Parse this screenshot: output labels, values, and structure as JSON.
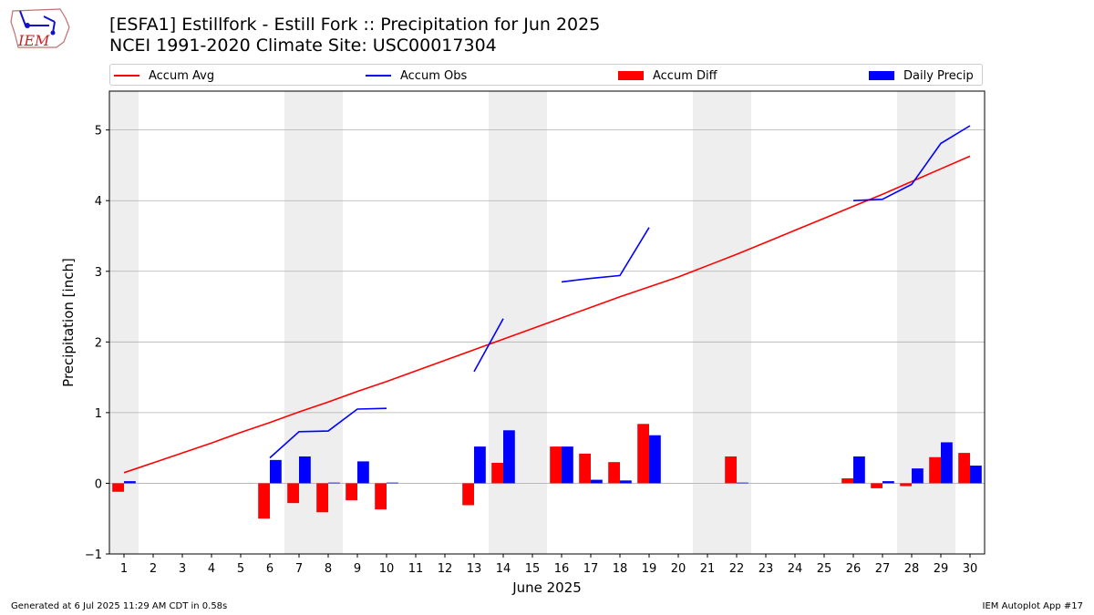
{
  "header": {
    "logo_text": "IEM",
    "title_line1": "[ESFA1] Estillfork - Estill Fork :: Precipitation for Jun 2025",
    "title_line2": "NCEI 1991-2020 Climate Site: USC00017304"
  },
  "footer": {
    "generated": "Generated at 6 Jul 2025 11:29 AM CDT in 0.58s",
    "app": "IEM Autoplot App #17"
  },
  "colors": {
    "avg": "#ff0000",
    "obs": "#0000ff",
    "diff": "#ff0000",
    "daily": "#0000ff",
    "weekend": "#eeeeee",
    "grid": "#b0b0b0"
  },
  "chart_data": {
    "type": "bar",
    "xlabel": "June 2025",
    "ylabel": "Precipitation [inch]",
    "xlim": [
      0.5,
      30.5
    ],
    "ylim": [
      -1,
      5.55
    ],
    "yticks": [
      -1,
      0,
      1,
      2,
      3,
      4,
      5
    ],
    "categories": [
      "1",
      "2",
      "3",
      "4",
      "5",
      "6",
      "7",
      "8",
      "9",
      "10",
      "11",
      "12",
      "13",
      "14",
      "15",
      "16",
      "17",
      "18",
      "19",
      "20",
      "21",
      "22",
      "23",
      "24",
      "25",
      "26",
      "27",
      "28",
      "29",
      "30"
    ],
    "legend": [
      "Accum Avg",
      "Accum Obs",
      "Accum Diff",
      "Daily Precip"
    ],
    "weekend_days": [
      [
        1,
        1
      ],
      [
        7,
        8
      ],
      [
        14,
        15
      ],
      [
        21,
        22
      ],
      [
        28,
        29
      ]
    ],
    "accum_avg": [
      0.15,
      0.29,
      0.43,
      0.57,
      0.72,
      0.86,
      1.01,
      1.15,
      1.3,
      1.44,
      1.59,
      1.74,
      1.89,
      2.04,
      2.19,
      2.34,
      2.49,
      2.64,
      2.78,
      2.92,
      3.08,
      3.24,
      3.41,
      3.58,
      3.75,
      3.92,
      4.09,
      4.27,
      4.45,
      4.63
    ],
    "accum_obs_segments": [
      [
        [
          6,
          0.36
        ],
        [
          7,
          0.73
        ],
        [
          8,
          0.74
        ],
        [
          9,
          1.05
        ],
        [
          10,
          1.06
        ]
      ],
      [
        [
          13,
          1.58
        ],
        [
          14,
          2.33
        ]
      ],
      [
        [
          16,
          2.85
        ],
        [
          17,
          2.9
        ],
        [
          18,
          2.94
        ],
        [
          19,
          3.62
        ]
      ],
      [
        [
          26,
          4.0
        ],
        [
          27,
          4.02
        ],
        [
          28,
          4.23
        ],
        [
          29,
          4.81
        ],
        [
          30,
          5.06
        ]
      ]
    ],
    "accum_diff": [
      [
        1,
        -0.12
      ],
      [
        6,
        -0.5
      ],
      [
        7,
        -0.28
      ],
      [
        8,
        -0.41
      ],
      [
        9,
        -0.24
      ],
      [
        10,
        -0.37
      ],
      [
        13,
        -0.31
      ],
      [
        14,
        0.29
      ],
      [
        16,
        0.52
      ],
      [
        17,
        0.42
      ],
      [
        18,
        0.3
      ],
      [
        19,
        0.84
      ],
      [
        22,
        0.38
      ],
      [
        26,
        0.07
      ],
      [
        27,
        -0.07
      ],
      [
        28,
        -0.04
      ],
      [
        29,
        0.37
      ],
      [
        30,
        0.43
      ]
    ],
    "daily_precip": [
      [
        1,
        0.03
      ],
      [
        6,
        0.33
      ],
      [
        7,
        0.38
      ],
      [
        8,
        0.01
      ],
      [
        9,
        0.31
      ],
      [
        10,
        0.01
      ],
      [
        13,
        0.52
      ],
      [
        14,
        0.75
      ],
      [
        16,
        0.52
      ],
      [
        17,
        0.05
      ],
      [
        18,
        0.04
      ],
      [
        19,
        0.68
      ],
      [
        22,
        0.01
      ],
      [
        26,
        0.38
      ],
      [
        27,
        0.03
      ],
      [
        28,
        0.21
      ],
      [
        29,
        0.58
      ],
      [
        30,
        0.25
      ]
    ]
  }
}
